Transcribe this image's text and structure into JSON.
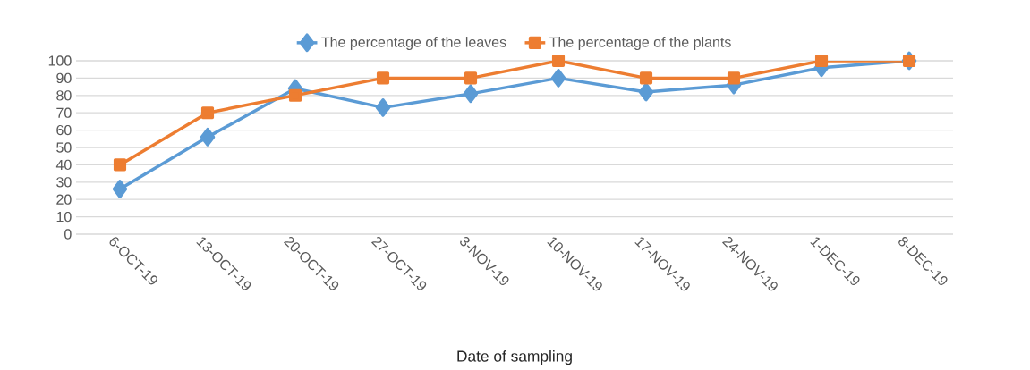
{
  "chart_data": {
    "type": "line",
    "xlabel": "Date of sampling",
    "categories": [
      "6-OCT-19",
      "13-OCT-19",
      "20-OCT-19",
      "27-OCT-19",
      "3-NOV-19",
      "10-NOV-19",
      "17-NOV-19",
      "24-NOV-19",
      "1-DEC-19",
      "8-DEC-19"
    ],
    "series": [
      {
        "name": "The percentage of the leaves",
        "color": "#5b9bd5",
        "marker": "diamond",
        "values": [
          26,
          56,
          84,
          73,
          81,
          90,
          82,
          86,
          96,
          100
        ]
      },
      {
        "name": "The percentage of the plants",
        "color": "#ed7d31",
        "marker": "square",
        "values": [
          40,
          70,
          80,
          90,
          90,
          100,
          90,
          90,
          100,
          100
        ]
      }
    ],
    "ylim": [
      0,
      100
    ],
    "yticks": [
      0,
      10,
      20,
      30,
      40,
      50,
      60,
      70,
      80,
      90,
      100
    ],
    "grid": "y",
    "legend": "top",
    "line_style": "solid"
  }
}
